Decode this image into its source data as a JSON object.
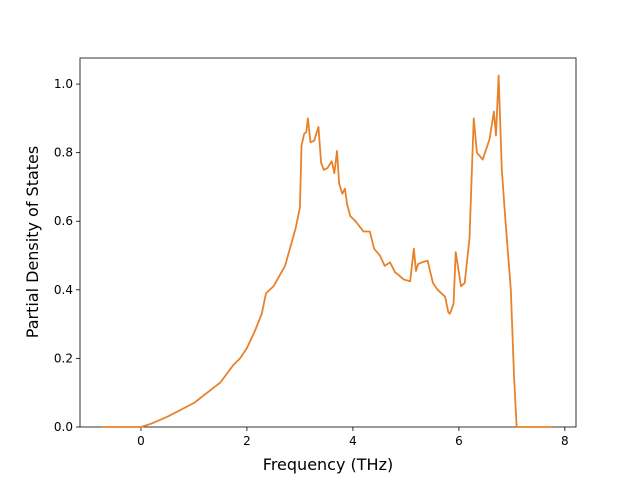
{
  "chart_data": {
    "type": "line",
    "xlabel": "Frequency (THz)",
    "ylabel": "Partial Density of States",
    "xlim": [
      -1.15,
      8.21
    ],
    "ylim": [
      0,
      1.076
    ],
    "xticks": [
      0,
      2,
      4,
      6,
      8
    ],
    "yticks": [
      {
        "value": 0,
        "label": "0.0"
      },
      {
        "value": 0.2,
        "label": "0.2"
      },
      {
        "value": 0.4,
        "label": "0.4"
      },
      {
        "value": 0.6,
        "label": "0.6"
      },
      {
        "value": 0.8,
        "label": "0.8"
      },
      {
        "value": 1,
        "label": "1.0"
      }
    ],
    "grid": false,
    "series": [
      {
        "color": "#e8822a",
        "x": [
          -0.74,
          0,
          0.2,
          0.5,
          1.0,
          1.5,
          1.74,
          1.87,
          2.0,
          2.15,
          2.28,
          2.36,
          2.5,
          2.72,
          2.92,
          3.0,
          3.03,
          3.08,
          3.12,
          3.15,
          3.2,
          3.27,
          3.35,
          3.4,
          3.45,
          3.52,
          3.6,
          3.65,
          3.7,
          3.74,
          3.8,
          3.85,
          3.89,
          3.95,
          4.05,
          4.2,
          4.32,
          4.4,
          4.51,
          4.6,
          4.7,
          4.8,
          4.85,
          4.96,
          5.08,
          5.15,
          5.19,
          5.23,
          5.3,
          5.41,
          5.51,
          5.6,
          5.74,
          5.8,
          5.83,
          5.9,
          5.94,
          6.04,
          6.11,
          6.2,
          6.28,
          6.34,
          6.45,
          6.58,
          6.66,
          6.7,
          6.75,
          6.81,
          6.87,
          6.98,
          7.04,
          7.09,
          7.77
        ],
        "values": [
          0,
          0,
          0.01,
          0.03,
          0.07,
          0.13,
          0.18,
          0.2,
          0.23,
          0.28,
          0.33,
          0.39,
          0.41,
          0.47,
          0.58,
          0.64,
          0.82,
          0.855,
          0.86,
          0.9,
          0.83,
          0.835,
          0.875,
          0.77,
          0.75,
          0.755,
          0.775,
          0.74,
          0.805,
          0.71,
          0.68,
          0.695,
          0.65,
          0.615,
          0.6,
          0.57,
          0.57,
          0.52,
          0.5,
          0.47,
          0.48,
          0.45,
          0.445,
          0.43,
          0.425,
          0.52,
          0.455,
          0.475,
          0.48,
          0.485,
          0.42,
          0.4,
          0.38,
          0.335,
          0.33,
          0.36,
          0.51,
          0.41,
          0.42,
          0.55,
          0.9,
          0.8,
          0.78,
          0.84,
          0.92,
          0.85,
          1.025,
          0.75,
          0.62,
          0.4,
          0.15,
          0,
          0
        ]
      }
    ]
  }
}
